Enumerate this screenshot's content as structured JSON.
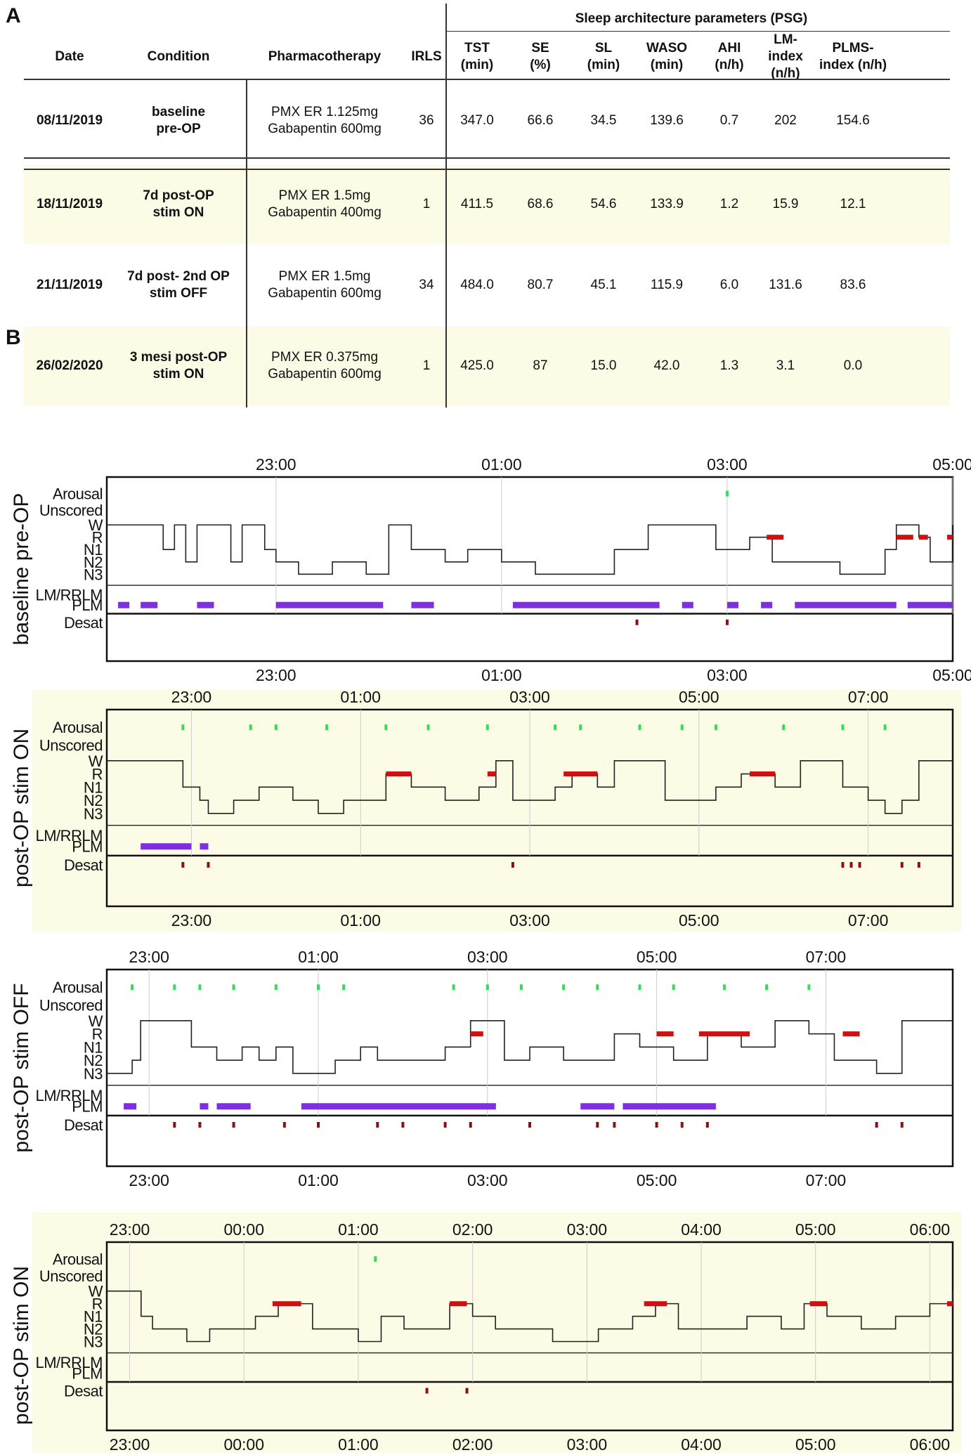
{
  "panelA": {
    "letter": "A"
  },
  "panelB": {
    "letter": "B"
  },
  "table": {
    "group_header": "Sleep architecture parameters (PSG)",
    "headers": [
      "Date",
      "Condition",
      "Pharmacotherapy",
      "IRLS",
      "TST\n(min)",
      "SE\n(%)",
      "SL\n(min)",
      "WASO\n(min)",
      "AHI\n(n/h)",
      "LM-index\n(n/h)",
      "PLMS-\nindex (n/h)"
    ],
    "rows": [
      {
        "date": "08/11/2019",
        "condition": "baseline\npre-OP",
        "pharma": "PMX ER 1.125mg\nGabapentin 600mg",
        "irls": "36",
        "tst": "347.0",
        "se": "66.6",
        "sl": "34.5",
        "waso": "139.6",
        "ahi": "0.7",
        "lm": "202",
        "plms": "154.6"
      },
      {
        "date": "18/11/2019",
        "condition": "7d post-OP\nstim ON",
        "pharma": "PMX ER 1.5mg\nGabapentin 400mg",
        "irls": "1",
        "tst": "411.5",
        "se": "68.6",
        "sl": "54.6",
        "waso": "133.9",
        "ahi": "1.2",
        "lm": "15.9",
        "plms": "12.1"
      },
      {
        "date": "21/11/2019",
        "condition": "7d post- 2nd OP\nstim OFF",
        "pharma": "PMX ER 1.5mg\nGabapentin 600mg",
        "irls": "34",
        "tst": "484.0",
        "se": "80.7",
        "sl": "45.1",
        "waso": "115.9",
        "ahi": "6.0",
        "lm": "131.6",
        "plms": "83.6"
      },
      {
        "date": "26/02/2020",
        "condition": "3 mesi post-OP\nstim ON",
        "pharma": "PMX ER 0.375mg\nGabapentin 600mg",
        "irls": "1",
        "tst": "425.0",
        "se": "87",
        "sl": "15.0",
        "waso": "42.0",
        "ahi": "1.3",
        "lm": "3.1",
        "plms": "0.0"
      }
    ]
  },
  "hypnograms": {
    "row_labels": [
      "Arousal",
      "Unscored",
      "W",
      "R",
      "N1",
      "N2",
      "N3",
      "LM/RRLM",
      "PLM",
      "Desat"
    ],
    "colors": {
      "arousal": "#33dd55",
      "rem": "#cc1111",
      "plm": "#7f2fe0",
      "desat": "#8b1010",
      "highlight": "#fcfce6",
      "grid": "#cccccc"
    },
    "panels": [
      {
        "side_label": "baseline pre-OP",
        "ticks_top": [
          "23:00",
          "01:00",
          "03:00",
          "05:00"
        ],
        "ticks_bottom": [
          "23:00",
          "01:00",
          "03:00",
          "05:00"
        ],
        "chart_data": {
          "type": "hypnogram",
          "start_hour": 21.5,
          "end_hour": 29.0,
          "tick_hours": [
            23,
            25,
            27,
            29
          ],
          "stage_steps": [
            [
              21.5,
              "W"
            ],
            [
              22.0,
              "N1"
            ],
            [
              22.1,
              "W"
            ],
            [
              22.2,
              "N2"
            ],
            [
              22.3,
              "W"
            ],
            [
              22.6,
              "N2"
            ],
            [
              22.7,
              "W"
            ],
            [
              22.9,
              "N1"
            ],
            [
              23.0,
              "N2"
            ],
            [
              23.2,
              "N3"
            ],
            [
              23.5,
              "N2"
            ],
            [
              23.8,
              "N3"
            ],
            [
              24.0,
              "W"
            ],
            [
              24.2,
              "N1"
            ],
            [
              24.5,
              "N2"
            ],
            [
              24.7,
              "N1"
            ],
            [
              25.0,
              "N2"
            ],
            [
              25.3,
              "N3"
            ],
            [
              26.0,
              "N1"
            ],
            [
              26.3,
              "W"
            ],
            [
              26.9,
              "N1"
            ],
            [
              27.2,
              "R"
            ],
            [
              27.4,
              "N2"
            ],
            [
              28.0,
              "N3"
            ],
            [
              28.4,
              "N1"
            ],
            [
              28.5,
              "W"
            ],
            [
              28.7,
              "R"
            ],
            [
              28.8,
              "N2"
            ],
            [
              29.0,
              "W"
            ]
          ],
          "rem_bars": [
            [
              27.35,
              27.5
            ],
            [
              28.5,
              28.65
            ],
            [
              28.7,
              28.78
            ],
            [
              28.95,
              29.0
            ]
          ],
          "arousals": [
            27.0
          ],
          "plm_bars": [
            [
              21.6,
              21.7
            ],
            [
              21.8,
              21.95
            ],
            [
              22.3,
              22.45
            ],
            [
              23.0,
              23.95
            ],
            [
              24.2,
              24.4
            ],
            [
              25.1,
              26.4
            ],
            [
              26.6,
              26.7
            ],
            [
              27.0,
              27.1
            ],
            [
              27.3,
              27.4
            ],
            [
              27.6,
              28.5
            ],
            [
              28.6,
              29.0
            ]
          ],
          "desats": [
            26.2,
            27.0
          ]
        }
      },
      {
        "side_label": "post-OP stim ON",
        "ticks_top": [
          "23:00",
          "01:00",
          "03:00",
          "05:00",
          "07:00"
        ],
        "ticks_bottom": [
          "23:00",
          "01:00",
          "03:00",
          "05:00",
          "07:00"
        ],
        "chart_data": {
          "type": "hypnogram",
          "start_hour": 22.0,
          "end_hour": 32.0,
          "tick_hours": [
            23,
            25,
            27,
            29,
            31
          ],
          "stage_steps": [
            [
              22.0,
              "W"
            ],
            [
              22.9,
              "N1"
            ],
            [
              23.1,
              "N2"
            ],
            [
              23.2,
              "N3"
            ],
            [
              23.5,
              "N2"
            ],
            [
              23.8,
              "N1"
            ],
            [
              24.2,
              "N2"
            ],
            [
              24.5,
              "N3"
            ],
            [
              24.8,
              "N2"
            ],
            [
              25.3,
              "R"
            ],
            [
              25.6,
              "N1"
            ],
            [
              26.0,
              "N2"
            ],
            [
              26.4,
              "N1"
            ],
            [
              26.6,
              "W"
            ],
            [
              26.8,
              "N2"
            ],
            [
              27.3,
              "N1"
            ],
            [
              27.5,
              "R"
            ],
            [
              27.8,
              "N1"
            ],
            [
              28.0,
              "W"
            ],
            [
              28.6,
              "N2"
            ],
            [
              29.2,
              "N1"
            ],
            [
              29.5,
              "R"
            ],
            [
              29.9,
              "N1"
            ],
            [
              30.2,
              "W"
            ],
            [
              30.7,
              "N1"
            ],
            [
              31.0,
              "N2"
            ],
            [
              31.2,
              "N3"
            ],
            [
              31.4,
              "N2"
            ],
            [
              31.6,
              "W"
            ],
            [
              32.0,
              "W"
            ]
          ],
          "rem_bars": [
            [
              25.3,
              25.6
            ],
            [
              26.5,
              26.6
            ],
            [
              27.4,
              27.8
            ],
            [
              29.6,
              29.9
            ]
          ],
          "arousals": [
            22.9,
            23.7,
            24.0,
            24.6,
            25.3,
            25.8,
            26.5,
            27.3,
            27.6,
            28.3,
            28.8,
            29.2,
            30.0,
            30.7,
            31.2
          ],
          "plm_bars": [
            [
              22.4,
              23.0
            ],
            [
              23.1,
              23.2
            ]
          ],
          "desats": [
            22.9,
            23.2,
            26.8,
            30.7,
            30.8,
            30.9,
            31.4,
            31.6
          ]
        }
      },
      {
        "side_label": "post-OP stim OFF",
        "ticks_top": [
          "23:00",
          "01:00",
          "03:00",
          "05:00",
          "07:00"
        ],
        "ticks_bottom": [
          "23:00",
          "01:00",
          "03:00",
          "05:00",
          "07:00"
        ],
        "chart_data": {
          "type": "hypnogram",
          "start_hour": 22.5,
          "end_hour": 32.5,
          "tick_hours": [
            23,
            25,
            27,
            29,
            31
          ],
          "stage_steps": [
            [
              22.5,
              "N3"
            ],
            [
              22.8,
              "N2"
            ],
            [
              22.9,
              "W"
            ],
            [
              23.5,
              "N1"
            ],
            [
              23.8,
              "N2"
            ],
            [
              24.1,
              "N1"
            ],
            [
              24.3,
              "N2"
            ],
            [
              24.5,
              "N1"
            ],
            [
              24.7,
              "N3"
            ],
            [
              25.2,
              "N2"
            ],
            [
              25.5,
              "N1"
            ],
            [
              25.7,
              "N2"
            ],
            [
              26.5,
              "N1"
            ],
            [
              26.8,
              "W"
            ],
            [
              27.2,
              "N2"
            ],
            [
              27.5,
              "N1"
            ],
            [
              27.9,
              "N2"
            ],
            [
              28.5,
              "R"
            ],
            [
              28.8,
              "N1"
            ],
            [
              29.2,
              "N2"
            ],
            [
              29.6,
              "R"
            ],
            [
              30.0,
              "N1"
            ],
            [
              30.4,
              "W"
            ],
            [
              30.8,
              "R"
            ],
            [
              31.1,
              "N2"
            ],
            [
              31.6,
              "N3"
            ],
            [
              31.9,
              "W"
            ],
            [
              32.5,
              "W"
            ]
          ],
          "rem_bars": [
            [
              26.8,
              26.95
            ],
            [
              29.0,
              29.2
            ],
            [
              29.5,
              30.1
            ],
            [
              31.2,
              31.4
            ]
          ],
          "arousals": [
            22.8,
            23.3,
            23.6,
            24.0,
            24.5,
            25.0,
            25.3,
            26.6,
            27.0,
            27.4,
            27.9,
            28.3,
            28.8,
            29.2,
            29.8,
            30.3,
            30.8
          ],
          "plm_bars": [
            [
              22.7,
              22.85
            ],
            [
              23.6,
              23.7
            ],
            [
              23.8,
              24.2
            ],
            [
              24.8,
              27.1
            ],
            [
              28.1,
              28.5
            ],
            [
              28.6,
              29.7
            ]
          ],
          "desats": [
            23.3,
            23.6,
            24.0,
            24.6,
            25.0,
            25.7,
            26.0,
            26.5,
            26.8,
            27.5,
            28.3,
            28.5,
            29.0,
            29.3,
            29.6,
            31.6,
            31.9
          ]
        }
      },
      {
        "side_label": "post-OP stim ON",
        "ticks_top": [
          "23:00",
          "00:00",
          "01:00",
          "02:00",
          "03:00",
          "04:00",
          "05:00",
          "06:00"
        ],
        "ticks_bottom": [
          "23:00",
          "00:00",
          "01:00",
          "02:00",
          "03:00",
          "04:00",
          "05:00",
          "06:00"
        ],
        "chart_data": {
          "type": "hypnogram",
          "start_hour": 22.8,
          "end_hour": 30.2,
          "tick_hours": [
            23,
            24,
            25,
            26,
            27,
            28,
            29,
            30
          ],
          "stage_steps": [
            [
              22.8,
              "W"
            ],
            [
              23.1,
              "N1"
            ],
            [
              23.2,
              "N2"
            ],
            [
              23.5,
              "N3"
            ],
            [
              23.7,
              "N2"
            ],
            [
              24.1,
              "N1"
            ],
            [
              24.3,
              "R"
            ],
            [
              24.6,
              "N2"
            ],
            [
              25.0,
              "N3"
            ],
            [
              25.2,
              "N1"
            ],
            [
              25.4,
              "N2"
            ],
            [
              25.8,
              "R"
            ],
            [
              26.0,
              "N1"
            ],
            [
              26.2,
              "N2"
            ],
            [
              26.7,
              "N3"
            ],
            [
              27.1,
              "N2"
            ],
            [
              27.4,
              "N1"
            ],
            [
              27.6,
              "R"
            ],
            [
              27.8,
              "N2"
            ],
            [
              28.4,
              "N1"
            ],
            [
              28.7,
              "N2"
            ],
            [
              28.9,
              "R"
            ],
            [
              29.1,
              "N1"
            ],
            [
              29.4,
              "N2"
            ],
            [
              29.7,
              "N1"
            ],
            [
              30.0,
              "R"
            ],
            [
              30.2,
              "W"
            ]
          ],
          "rem_bars": [
            [
              24.25,
              24.5
            ],
            [
              25.8,
              25.95
            ],
            [
              27.5,
              27.7
            ],
            [
              28.95,
              29.1
            ],
            [
              30.15,
              30.2
            ]
          ],
          "arousals": [
            25.15
          ],
          "plm_bars": [],
          "desats": [
            25.6,
            25.95
          ]
        }
      }
    ]
  }
}
